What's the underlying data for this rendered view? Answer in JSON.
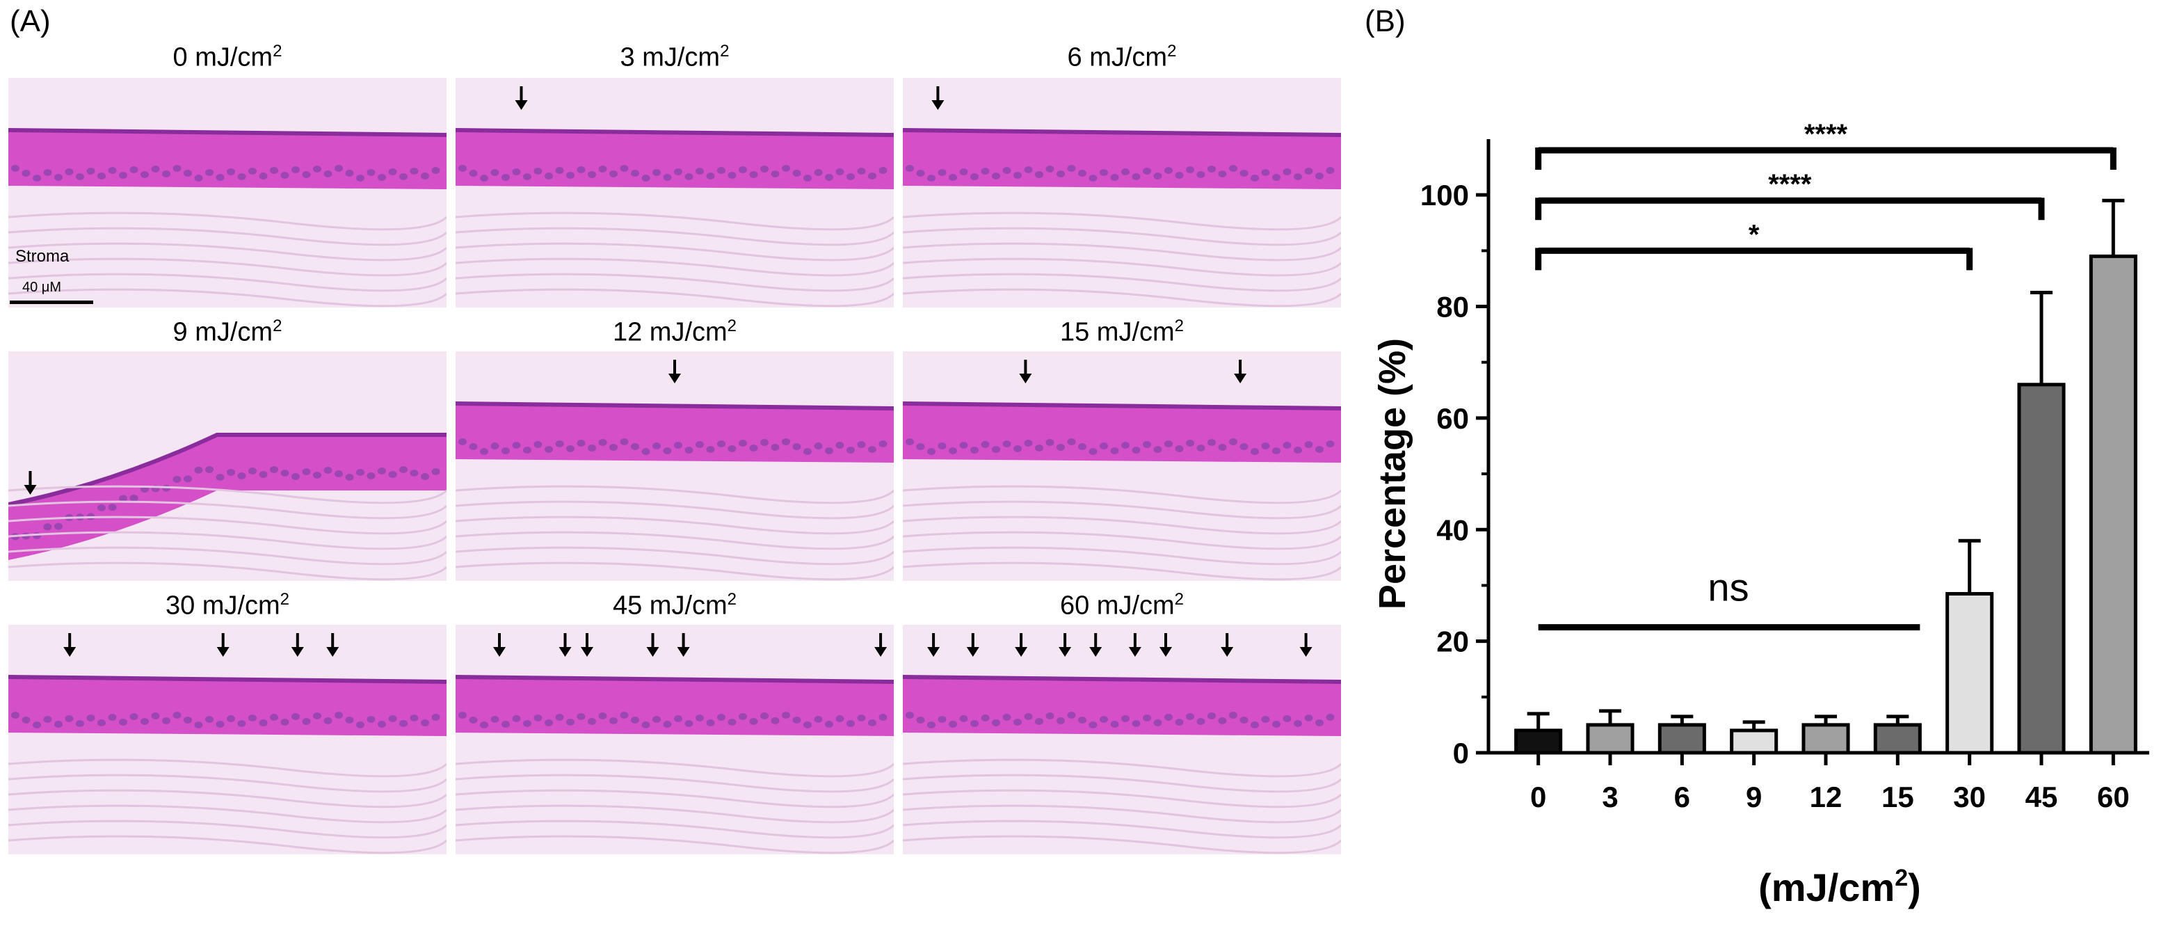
{
  "panels": {
    "a_label": "(A)",
    "b_label": "(B)"
  },
  "micrographs": {
    "stroma_label": "Stroma",
    "scale_label": "40 μM",
    "tiles": [
      {
        "title": "0 mJ/cm",
        "sup": "2",
        "arrows": 0
      },
      {
        "title": "3 mJ/cm",
        "sup": "2",
        "arrows": 1
      },
      {
        "title": "6 mJ/cm",
        "sup": "2",
        "arrows": 1
      },
      {
        "title": "9 mJ/cm",
        "sup": "2",
        "arrows": 1
      },
      {
        "title": "12 mJ/cm",
        "sup": "2",
        "arrows": 1
      },
      {
        "title": "15 mJ/cm",
        "sup": "2",
        "arrows": 2
      },
      {
        "title": "30 mJ/cm",
        "sup": "2",
        "arrows": 4
      },
      {
        "title": "45 mJ/cm",
        "sup": "2",
        "arrows": 6
      },
      {
        "title": "60 mJ/cm",
        "sup": "2",
        "arrows": 9
      }
    ],
    "colors": {
      "stain": "#d44fc8",
      "stain_dark": "#8a2d9c",
      "stroma": "#f4e6f3",
      "nuclei": "#6b3fa0"
    }
  },
  "chart_data": {
    "type": "bar",
    "title": "",
    "ylabel": "Percentage (%)",
    "xlabel": "(mJ/cm2)",
    "xlabel_main": "(mJ/cm",
    "xlabel_sup": "2",
    "xlabel_end": ")",
    "categories": [
      "0",
      "3",
      "6",
      "9",
      "12",
      "15",
      "30",
      "45",
      "60"
    ],
    "values": [
      4,
      5,
      5,
      4,
      5,
      5,
      28.5,
      66,
      89
    ],
    "errors": [
      3,
      2.5,
      1.5,
      1.5,
      1.5,
      1.5,
      9.5,
      16.5,
      10
    ],
    "bar_colors": [
      "#111111",
      "#a0a0a0",
      "#6b6b6b",
      "#e0e0e0",
      "#a0a0a0",
      "#6b6b6b",
      "#e0e0e0",
      "#6b6b6b",
      "#a0a0a0"
    ],
    "ylim": [
      0,
      110
    ],
    "yticks": [
      0,
      20,
      40,
      60,
      80,
      100
    ],
    "grid": false,
    "annotations": [
      {
        "label": "****",
        "from": "0",
        "to": "60",
        "y": 108
      },
      {
        "label": "****",
        "from": "0",
        "to": "45",
        "y": 99
      },
      {
        "label": "*",
        "from": "0",
        "to": "30",
        "y": 90
      },
      {
        "label": "ns",
        "from": "0",
        "to": "15",
        "y": 22.5,
        "type": "line"
      }
    ]
  }
}
